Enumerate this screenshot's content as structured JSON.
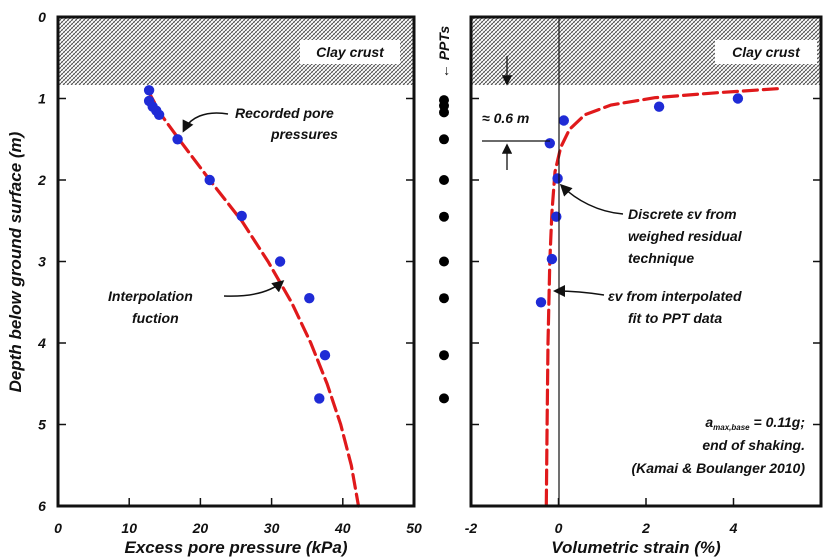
{
  "chart_data": [
    {
      "type": "scatter",
      "panel": "left",
      "xlabel": "Excess pore pressure (kPa)",
      "ylabel": "Depth below ground surface (m)",
      "xlim": [
        0,
        50
      ],
      "ylim": [
        6,
        0
      ],
      "xticks": [
        "0",
        "10",
        "20",
        "30",
        "40",
        "50"
      ],
      "yticks": [
        "0",
        "1",
        "2",
        "3",
        "4",
        "5",
        "6"
      ],
      "clay_crust_label": "Clay crust",
      "clay_crust_depth": [
        0,
        0.85
      ],
      "series": [
        {
          "kind": "points",
          "color": "#1f2bd6",
          "points": [
            [
              12.8,
              0.9
            ],
            [
              12.8,
              1.03
            ],
            [
              13.3,
              1.1
            ],
            [
              13.8,
              1.15
            ],
            [
              14.2,
              1.2
            ],
            [
              16.8,
              1.5
            ],
            [
              21.3,
              2.0
            ],
            [
              25.8,
              2.44
            ],
            [
              31.2,
              3.0
            ],
            [
              35.3,
              3.45
            ],
            [
              37.5,
              4.15
            ],
            [
              36.7,
              4.68
            ]
          ]
        },
        {
          "kind": "curve",
          "color": "#e0191b",
          "points": [
            [
              12.6,
              0.9
            ],
            [
              14.5,
              1.2
            ],
            [
              17.0,
              1.5
            ],
            [
              21.3,
              2.0
            ],
            [
              25.8,
              2.5
            ],
            [
              29.5,
              3.0
            ],
            [
              32.8,
              3.5
            ],
            [
              35.5,
              4.0
            ],
            [
              37.8,
              4.5
            ],
            [
              39.7,
              5.0
            ],
            [
              41.2,
              5.5
            ],
            [
              42.2,
              6.0
            ]
          ]
        }
      ],
      "annotations": [
        {
          "lines": [
            "Recorded pore",
            "pressures"
          ],
          "target": [
            16.8,
            1.5
          ]
        },
        {
          "lines": [
            "Interpolation",
            "fuction"
          ],
          "target": [
            32.0,
            3.25
          ]
        }
      ]
    },
    {
      "type": "scatter",
      "panel": "right",
      "xlabel": "Volumetric strain (%)",
      "xlim": [
        -2,
        6
      ],
      "ylim": [
        6,
        0
      ],
      "xticks": [
        "-2",
        "0",
        "2",
        "4"
      ],
      "clay_crust_label": "Clay crust",
      "clay_crust_depth": [
        0,
        0.85
      ],
      "series": [
        {
          "kind": "points",
          "color": "#1f2bd6",
          "points": [
            [
              4.1,
              1.0
            ],
            [
              2.3,
              1.1
            ],
            [
              0.12,
              1.27
            ],
            [
              -0.2,
              1.55
            ],
            [
              -0.02,
              1.98
            ],
            [
              -0.05,
              2.45
            ],
            [
              -0.15,
              2.97
            ],
            [
              -0.4,
              3.5
            ]
          ]
        },
        {
          "kind": "curve",
          "color": "#e0191b",
          "points": [
            [
              5.0,
              0.88
            ],
            [
              3.6,
              0.93
            ],
            [
              2.2,
              0.99
            ],
            [
              1.2,
              1.08
            ],
            [
              0.6,
              1.2
            ],
            [
              0.25,
              1.38
            ],
            [
              0.05,
              1.6
            ],
            [
              -0.08,
              1.9
            ],
            [
              -0.15,
              2.4
            ],
            [
              -0.2,
              3.0
            ],
            [
              -0.24,
              4.0
            ],
            [
              -0.26,
              5.0
            ],
            [
              -0.28,
              6.0
            ]
          ]
        }
      ],
      "annotations": [
        {
          "lines": [
            "≈ 0.6 m"
          ]
        },
        {
          "lines": [
            "Discrete εv from",
            "weighed residual",
            "technique"
          ],
          "target": [
            -0.02,
            1.98
          ]
        },
        {
          "lines": [
            "εv from interpolated",
            "fit to PPT data"
          ],
          "target": [
            -0.2,
            3.3
          ]
        }
      ],
      "note": {
        "line1_prefix": "a",
        "line1_subscript": "max,base",
        "line1_suffix": " = 0.11g;",
        "line2": "end of shaking.",
        "line3": "(Kamai & Boulanger 2010)"
      }
    }
  ],
  "ppts": {
    "label": "← PPTs",
    "depths": [
      1.02,
      1.09,
      1.17,
      1.5,
      2.0,
      2.45,
      3.0,
      3.45,
      4.15,
      4.68
    ],
    "color": "#000000"
  }
}
